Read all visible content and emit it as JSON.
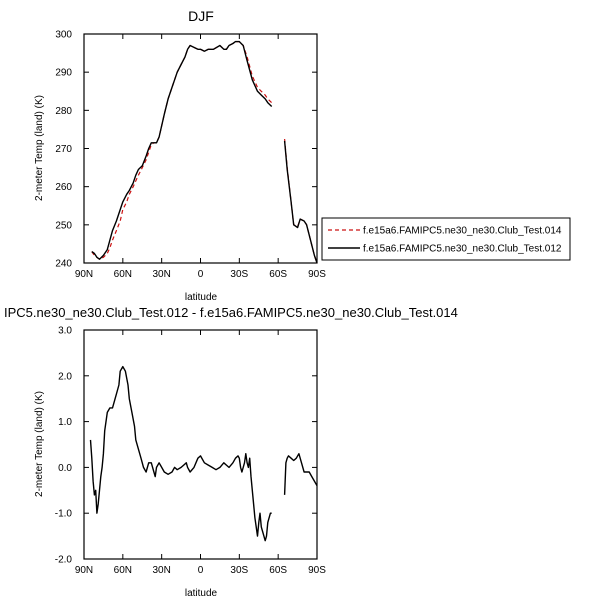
{
  "chart_data": [
    {
      "type": "line",
      "title": "DJF",
      "xlabel": "latitude",
      "ylabel": "2-meter Temp (land) (K)",
      "xlim": [
        90,
        -90
      ],
      "ylim": [
        240,
        300
      ],
      "x_ticks": [
        {
          "value": 90,
          "label": "90N"
        },
        {
          "value": 60,
          "label": "60N"
        },
        {
          "value": 30,
          "label": "30N"
        },
        {
          "value": 0,
          "label": "0"
        },
        {
          "value": -30,
          "label": "30S"
        },
        {
          "value": -60,
          "label": "60S"
        },
        {
          "value": -90,
          "label": "90S"
        }
      ],
      "y_ticks": [
        {
          "value": 240,
          "label": "240"
        },
        {
          "value": 250,
          "label": "250"
        },
        {
          "value": 260,
          "label": "260"
        },
        {
          "value": 270,
          "label": "270"
        },
        {
          "value": 280,
          "label": "280"
        },
        {
          "value": 290,
          "label": "290"
        },
        {
          "value": 300,
          "label": "300"
        }
      ],
      "grid": false,
      "legend_position": "right",
      "series": [
        {
          "name": "f.e15a6.FAMIPC5.ne30_ne30.Club_Test.014",
          "color": "#cc1111",
          "dash": "dashed",
          "segments": [
            {
              "x": [
                84,
                82,
                80,
                78,
                75,
                72,
                70,
                68,
                65,
                62,
                60,
                57,
                55,
                52,
                50,
                48,
                45,
                42,
                40,
                38,
                36,
                34,
                32,
                30,
                28,
                25,
                22,
                20,
                18,
                15,
                12,
                10,
                8,
                5,
                2,
                0,
                -3,
                -6,
                -10,
                -15,
                -18,
                -20,
                -22,
                -25,
                -27,
                -30,
                -33,
                -36,
                -40,
                -44,
                -47,
                -50,
                -52,
                -55
              ],
              "y": [
                243,
                242,
                241.5,
                241,
                241.5,
                242.5,
                244,
                246,
                248.5,
                251,
                254,
                256,
                258,
                260,
                261.5,
                263,
                265,
                267,
                269,
                271,
                271.5,
                271.5,
                273,
                276,
                279,
                283,
                286,
                288,
                290,
                292,
                294,
                296,
                297,
                296.5,
                296,
                296,
                295.5,
                296,
                296,
                297,
                296,
                296,
                297,
                297.5,
                298,
                298,
                297,
                294,
                289,
                286,
                285,
                284,
                283,
                282
              ]
            },
            {
              "x": [
                -65,
                -67,
                -70,
                -72,
                -75,
                -77,
                -80,
                -82,
                -85,
                -88,
                -90
              ],
              "y": [
                272.5,
                265,
                256,
                250,
                249.5,
                251.5,
                251,
                250,
                246,
                242,
                240
              ]
            }
          ]
        },
        {
          "name": "f.e15a6.FAMIPC5.ne30_ne30.Club_Test.012",
          "color": "#000000",
          "dash": "solid",
          "segments": [
            {
              "x": [
                84,
                82,
                80,
                78,
                75,
                72,
                70,
                68,
                65,
                62,
                60,
                57,
                55,
                52,
                50,
                48,
                45,
                42,
                40,
                38,
                36,
                34,
                32,
                30,
                28,
                25,
                22,
                20,
                18,
                15,
                12,
                10,
                8,
                5,
                2,
                0,
                -3,
                -6,
                -10,
                -15,
                -18,
                -20,
                -22,
                -25,
                -27,
                -30,
                -33,
                -36,
                -40,
                -44,
                -47,
                -50,
                -52,
                -55
              ],
              "y": [
                243,
                242.5,
                241.5,
                241,
                242,
                243.5,
                246,
                248.5,
                251,
                254,
                256,
                258,
                259,
                261,
                263,
                264.5,
                265.5,
                268,
                270,
                271.5,
                271.5,
                271.5,
                273,
                276,
                279,
                283,
                286,
                288,
                290,
                292,
                294,
                296,
                297,
                296.5,
                296,
                296,
                295.5,
                296,
                296,
                297,
                296,
                296,
                297,
                297.5,
                298,
                298,
                297,
                293,
                288,
                285,
                284,
                283,
                282,
                281
              ]
            },
            {
              "x": [
                -65,
                -67,
                -70,
                -72,
                -75,
                -77,
                -80,
                -82,
                -85,
                -88,
                -90
              ],
              "y": [
                272,
                264.5,
                256,
                250,
                249.3,
                251.5,
                251,
                250,
                246,
                242,
                240
              ]
            }
          ]
        }
      ]
    },
    {
      "type": "line",
      "title": "IPC5.ne30_ne30.Club_Test.012 - f.e15a6.FAMIPC5.ne30_ne30.Club_Test.014",
      "xlabel": "latitude",
      "ylabel": "2-meter Temp (land) (K)",
      "xlim": [
        90,
        -90
      ],
      "ylim": [
        -2.0,
        3.0
      ],
      "x_ticks": [
        {
          "value": 90,
          "label": "90N"
        },
        {
          "value": 60,
          "label": "60N"
        },
        {
          "value": 30,
          "label": "30N"
        },
        {
          "value": 0,
          "label": "0"
        },
        {
          "value": -30,
          "label": "30S"
        },
        {
          "value": -60,
          "label": "60S"
        },
        {
          "value": -90,
          "label": "90S"
        }
      ],
      "y_ticks": [
        {
          "value": -2.0,
          "label": "-2.0"
        },
        {
          "value": -1.0,
          "label": "-1.0"
        },
        {
          "value": 0.0,
          "label": "0.0"
        },
        {
          "value": 1.0,
          "label": "1.0"
        },
        {
          "value": 2.0,
          "label": "2.0"
        },
        {
          "value": 3.0,
          "label": "3.0"
        }
      ],
      "grid": false,
      "series": [
        {
          "color": "#000000",
          "dash": "solid",
          "segments": [
            {
              "x": [
                85,
                84,
                83,
                82,
                81,
                80,
                79,
                78,
                77,
                76,
                75,
                74,
                72,
                70,
                68,
                66,
                65,
                63,
                62,
                60,
                58,
                56,
                55,
                53,
                51,
                50,
                48,
                46,
                44,
                42,
                40,
                38,
                37,
                36,
                35,
                34,
                32,
                30,
                28,
                25,
                22,
                20,
                18,
                15,
                13,
                11,
                10,
                8,
                5,
                2,
                0,
                -3,
                -6,
                -9,
                -12,
                -15,
                -18,
                -20,
                -22,
                -25,
                -27,
                -29,
                -30,
                -31,
                -32,
                -33,
                -34,
                -35,
                -36,
                -37,
                -38,
                -39,
                -40,
                -41,
                -42,
                -43,
                -44,
                -45,
                -46,
                -47,
                -48,
                -49,
                -50,
                -51,
                -52,
                -54,
                -55
              ],
              "y": [
                0.6,
                0.2,
                -0.3,
                -0.6,
                -0.5,
                -1.0,
                -0.8,
                -0.5,
                -0.2,
                0.0,
                0.3,
                0.8,
                1.2,
                1.3,
                1.3,
                1.5,
                1.6,
                1.8,
                2.1,
                2.2,
                2.1,
                1.8,
                1.5,
                1.2,
                0.9,
                0.6,
                0.4,
                0.2,
                0.0,
                -0.1,
                0.1,
                0.1,
                0.0,
                -0.1,
                -0.2,
                0.0,
                0.1,
                0.0,
                -0.1,
                -0.15,
                -0.1,
                0.0,
                -0.05,
                0.0,
                0.05,
                0.1,
                0.0,
                -0.1,
                0.0,
                0.2,
                0.25,
                0.1,
                0.05,
                0.0,
                -0.05,
                0.0,
                0.1,
                0.05,
                0.0,
                0.1,
                0.2,
                0.25,
                0.2,
                0.0,
                -0.1,
                0.0,
                0.1,
                0.3,
                0.1,
                0.0,
                0.2,
                -0.2,
                -0.5,
                -0.8,
                -1.1,
                -1.3,
                -1.5,
                -1.2,
                -1.0,
                -1.3,
                -1.4,
                -1.5,
                -1.6,
                -1.5,
                -1.2,
                -1.0,
                -1.0
              ]
            },
            {
              "x": [
                -65,
                -66,
                -67,
                -68,
                -70,
                -72,
                -74,
                -76,
                -78,
                -80,
                -82,
                -84,
                -86,
                -88,
                -90
              ],
              "y": [
                -0.6,
                0.1,
                0.2,
                0.25,
                0.2,
                0.15,
                0.2,
                0.3,
                0.1,
                -0.1,
                -0.1,
                -0.1,
                -0.2,
                -0.3,
                -0.4
              ]
            }
          ]
        }
      ]
    }
  ]
}
